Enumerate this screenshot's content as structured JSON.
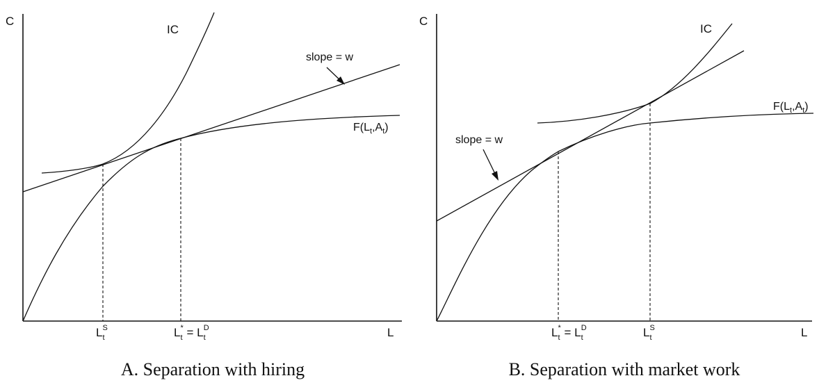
{
  "panel_a": {
    "caption": "A. Separation with hiring",
    "y_axis_label": "C",
    "x_axis_label": "L",
    "ic_label": "IC",
    "slope_label": "slope = w",
    "production_label": {
      "base": "F(L",
      "sub1": "t",
      "mid": ",A",
      "sub2": "t",
      "end": ")"
    },
    "tick_1": {
      "base": "L",
      "sub": "t",
      "sup": "S"
    },
    "tick_2": {
      "base": "L",
      "sub": "t",
      "sup": "*",
      "eq": " = L",
      "sub2": "t",
      "sup2": "D"
    }
  },
  "panel_b": {
    "caption": "B. Separation with market work",
    "y_axis_label": "C",
    "x_axis_label": "L",
    "ic_label": "IC",
    "slope_label": "slope = w",
    "production_label": {
      "base": "F(L",
      "sub1": "t",
      "mid": ",A",
      "sub2": "t",
      "end": ")"
    },
    "tick_1": {
      "base": "L",
      "sub": "t",
      "sup": "*",
      "eq": " = L",
      "sub2": "t",
      "sup2": "D"
    },
    "tick_2": {
      "base": "L",
      "sub": "t",
      "sup": "S"
    }
  }
}
